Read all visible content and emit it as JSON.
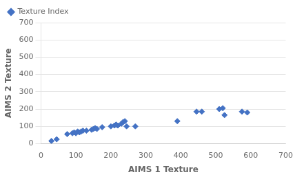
{
  "chart_data": {
    "type": "scatter",
    "x": [
      30,
      45,
      75,
      90,
      95,
      100,
      105,
      110,
      115,
      120,
      130,
      145,
      150,
      155,
      160,
      175,
      200,
      210,
      215,
      220,
      230,
      235,
      240,
      245,
      270,
      390,
      445,
      460,
      510,
      520,
      525,
      575,
      590
    ],
    "series": [
      {
        "name": "Texture Index",
        "color": "#4472C4",
        "marker": "diamond",
        "values": [
          15,
          25,
          55,
          60,
          65,
          60,
          70,
          65,
          70,
          75,
          75,
          80,
          85,
          90,
          85,
          95,
          100,
          105,
          110,
          105,
          115,
          125,
          130,
          100,
          100,
          130,
          185,
          185,
          200,
          205,
          165,
          185,
          180
        ]
      }
    ],
    "xlabel": "AIMS 1 Texture",
    "ylabel": "AIMS 2 Texture",
    "xlim": [
      0,
      700
    ],
    "ylim": [
      0,
      700
    ],
    "xticks": [
      0,
      100,
      200,
      300,
      400,
      500,
      600,
      700
    ],
    "yticks": [
      0,
      100,
      200,
      300,
      400,
      500,
      600,
      700
    ],
    "grid": "y",
    "legend": "upper left"
  }
}
